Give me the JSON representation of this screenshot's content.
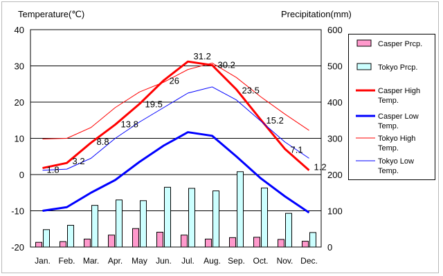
{
  "chart_data": {
    "type": "bar",
    "y_left_label": "Temperature(℃)",
    "y_right_label": "Precipitation(mm)",
    "categories": [
      "Jan.",
      "Feb.",
      "Mar.",
      "Apr.",
      "May",
      "Jun.",
      "Jul.",
      "Aug.",
      "Sep.",
      "Oct.",
      "Nov.",
      "Dec."
    ],
    "y_left_lim": [
      -20,
      40
    ],
    "y_left_ticks": [
      "40",
      "30",
      "20",
      "10",
      "0",
      "-10",
      "-20"
    ],
    "y_right_lim": [
      0,
      600
    ],
    "y_right_ticks": [
      "600",
      "500",
      "400",
      "300",
      "200",
      "100",
      "0"
    ],
    "grid": true,
    "legend_position": "right",
    "bar_series": [
      {
        "name": "Casper Prcp.",
        "color": "#ff99cc",
        "values": [
          13,
          15,
          22,
          33,
          51,
          41,
          33,
          22,
          26,
          27,
          21,
          16
        ]
      },
      {
        "name": "Tokyo Prcp.",
        "color": "#ccffff",
        "values": [
          48,
          60,
          115,
          130,
          128,
          165,
          162,
          155,
          208,
          163,
          93,
          40
        ]
      }
    ],
    "line_series": [
      {
        "name": "Casper High Temp.",
        "color": "#ff0000",
        "width": 3,
        "values": [
          1.8,
          3.2,
          8.8,
          13.8,
          19.5,
          26,
          31.2,
          30.2,
          23.5,
          15.2,
          7.1,
          1.2
        ]
      },
      {
        "name": "Casper Low Temp.",
        "color": "#0000ff",
        "width": 3,
        "values": [
          -10,
          -9,
          -5,
          -1.5,
          3.5,
          8,
          11.7,
          10.7,
          5,
          -1,
          -6,
          -10.5
        ]
      },
      {
        "name": "Tokyo High Temp.",
        "color": "#ff0000",
        "width": 1,
        "values": [
          9.8,
          10,
          13,
          18.5,
          22.8,
          25.5,
          29,
          30.8,
          26.8,
          21.5,
          16.7,
          12.2
        ]
      },
      {
        "name": "Tokyo Low Temp.",
        "color": "#0000ff",
        "width": 1,
        "values": [
          1.2,
          1.5,
          4.5,
          10,
          14.5,
          18.5,
          22.5,
          24.2,
          20.6,
          14.8,
          9,
          4.5
        ]
      }
    ],
    "data_labels": [
      "1.8",
      "3.2",
      "8.8",
      "13.8",
      "19.5",
      "26",
      "31.2",
      "30.2",
      "23.5",
      "15.2",
      "7.1",
      "1.2"
    ]
  }
}
